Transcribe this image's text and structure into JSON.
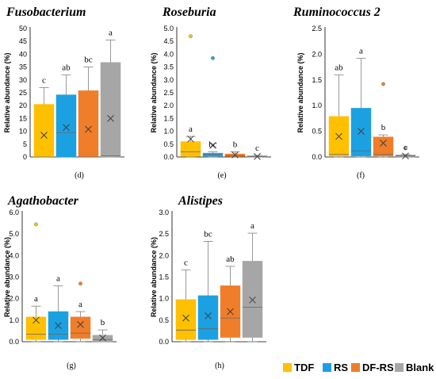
{
  "colors": {
    "TDF": "#FFC000",
    "RS": "#1BA1E2",
    "DF-RS": "#F07D29",
    "Blank": "#A6A6A6"
  },
  "legend": [
    {
      "name": "TDF",
      "color": "#FFC000"
    },
    {
      "name": "RS",
      "color": "#1BA1E2"
    },
    {
      "name": "DF-RS",
      "color": "#F07D29"
    },
    {
      "name": "Blank",
      "color": "#A6A6A6"
    }
  ],
  "chart_data": [
    {
      "type": "box",
      "title": "Fusobacterium",
      "panel_label": "(d)",
      "ylabel": "Relative abundance (%)",
      "ylim": [
        0,
        50
      ],
      "yticks": [
        "0",
        "5",
        "10",
        "15",
        "20",
        "25",
        "30",
        "35",
        "40",
        "45",
        "50"
      ],
      "groups": [
        {
          "name": "TDF",
          "min": 0,
          "q1": 0,
          "median": 0,
          "q3": 20.5,
          "max": 27,
          "mean": 8.5,
          "outliers": [],
          "letter": "c"
        },
        {
          "name": "RS",
          "min": 0,
          "q1": 0,
          "median": 9.5,
          "q3": 24.2,
          "max": 32,
          "mean": 11.5,
          "outliers": [],
          "letter": "ab"
        },
        {
          "name": "DF-RS",
          "min": 0,
          "q1": 0,
          "median": 0,
          "q3": 25.8,
          "max": 35,
          "mean": 10.8,
          "outliers": [],
          "letter": "bc"
        },
        {
          "name": "Blank",
          "min": 0,
          "q1": 0,
          "median": 0.5,
          "q3": 36.8,
          "max": 45.5,
          "mean": 15,
          "outliers": [],
          "letter": "a"
        }
      ]
    },
    {
      "type": "box",
      "title": "Roseburia",
      "panel_label": "(e)",
      "ylabel": "Relative abundance (%)",
      "ylim": [
        0,
        5
      ],
      "yticks": [
        "0.0",
        "0.5",
        "1.0",
        "1.5",
        "2.0",
        "2.5",
        "3.0",
        "3.5",
        "4.0",
        "4.5",
        "5.0"
      ],
      "groups": [
        {
          "name": "TDF",
          "min": 0,
          "q1": 0.02,
          "median": 0.2,
          "q3": 0.6,
          "max": 0.8,
          "mean": 0.7,
          "outliers": [
            4.7
          ],
          "letter": "a"
        },
        {
          "name": "RS",
          "min": 0,
          "q1": 0.03,
          "median": 0.1,
          "q3": 0.15,
          "max": 0.2,
          "mean": 0.45,
          "outliers": [
            3.85
          ],
          "letter": "bc"
        },
        {
          "name": "DF-RS",
          "min": 0,
          "q1": 0.02,
          "median": 0.05,
          "q3": 0.12,
          "max": 0.2,
          "mean": 0.08,
          "outliers": [],
          "letter": "b"
        },
        {
          "name": "Blank",
          "min": 0,
          "q1": 0,
          "median": 0.02,
          "q3": 0.05,
          "max": 0.06,
          "mean": 0.02,
          "outliers": [],
          "letter": "c"
        }
      ]
    },
    {
      "type": "box",
      "title": "Ruminococcus 2",
      "panel_label": "(f)",
      "ylabel": "Relative abundance (%)",
      "ylim": [
        0,
        2.5
      ],
      "yticks": [
        "0.0",
        "0.5",
        "1.0",
        "1.5",
        "2.0",
        "2.5"
      ],
      "groups": [
        {
          "name": "TDF",
          "min": 0,
          "q1": 0.02,
          "median": 0.05,
          "q3": 0.79,
          "max": 1.6,
          "mean": 0.4,
          "outliers": [],
          "letter": "ab"
        },
        {
          "name": "RS",
          "min": 0,
          "q1": 0.02,
          "median": 0.12,
          "q3": 0.95,
          "max": 1.92,
          "mean": 0.5,
          "outliers": [],
          "letter": "a"
        },
        {
          "name": "DF-RS",
          "min": 0,
          "q1": 0.02,
          "median": 0.05,
          "q3": 0.39,
          "max": 0.43,
          "mean": 0.27,
          "outliers": [
            1.42
          ],
          "letter": "b"
        },
        {
          "name": "Blank",
          "min": 0,
          "q1": 0,
          "median": 0.02,
          "q3": 0.04,
          "max": 0.05,
          "mean": 0.02,
          "outliers": [
            0.17
          ],
          "letter": "c"
        }
      ]
    },
    {
      "type": "box",
      "title": "Agathobacter",
      "panel_label": "(g)",
      "ylabel": "Relative abundance (%)",
      "ylim": [
        0,
        6
      ],
      "yticks": [
        "0.0",
        "1.0",
        "2.0",
        "3.0",
        "4.0",
        "5.0",
        "6.0"
      ],
      "groups": [
        {
          "name": "TDF",
          "min": 0,
          "q1": 0.1,
          "median": 0.35,
          "q3": 1.15,
          "max": 1.65,
          "mean": 1.0,
          "outliers": [
            5.45
          ],
          "letter": "a"
        },
        {
          "name": "RS",
          "min": 0,
          "q1": 0.1,
          "median": 0.35,
          "q3": 1.4,
          "max": 2.6,
          "mean": 0.75,
          "outliers": [],
          "letter": "a"
        },
        {
          "name": "DF-RS",
          "min": 0,
          "q1": 0.15,
          "median": 0.4,
          "q3": 1.15,
          "max": 1.4,
          "mean": 0.8,
          "outliers": [
            2.7
          ],
          "letter": "a"
        },
        {
          "name": "Blank",
          "min": 0,
          "q1": 0,
          "median": 0.1,
          "q3": 0.3,
          "max": 0.55,
          "mean": 0.18,
          "outliers": [],
          "letter": "b"
        }
      ]
    },
    {
      "type": "box",
      "title": "Alistipes",
      "panel_label": "(h)",
      "ylabel": "Relative abundance (%)",
      "ylim": [
        0,
        3
      ],
      "yticks": [
        "0.0",
        "0.5",
        "1.0",
        "1.5",
        "2.0",
        "2.5",
        "3.0"
      ],
      "groups": [
        {
          "name": "TDF",
          "min": 0,
          "q1": 0.05,
          "median": 0.27,
          "q3": 0.98,
          "max": 1.67,
          "mean": 0.55,
          "outliers": [],
          "letter": "c"
        },
        {
          "name": "RS",
          "min": 0,
          "q1": 0.05,
          "median": 0.3,
          "q3": 1.07,
          "max": 2.33,
          "mean": 0.6,
          "outliers": [],
          "letter": "bc"
        },
        {
          "name": "DF-RS",
          "min": 0,
          "q1": 0.1,
          "median": 0.55,
          "q3": 1.3,
          "max": 1.75,
          "mean": 0.7,
          "outliers": [],
          "letter": "ab"
        },
        {
          "name": "Blank",
          "min": 0,
          "q1": 0.1,
          "median": 0.8,
          "q3": 1.87,
          "max": 2.52,
          "mean": 0.97,
          "outliers": [],
          "letter": "a"
        }
      ]
    }
  ]
}
